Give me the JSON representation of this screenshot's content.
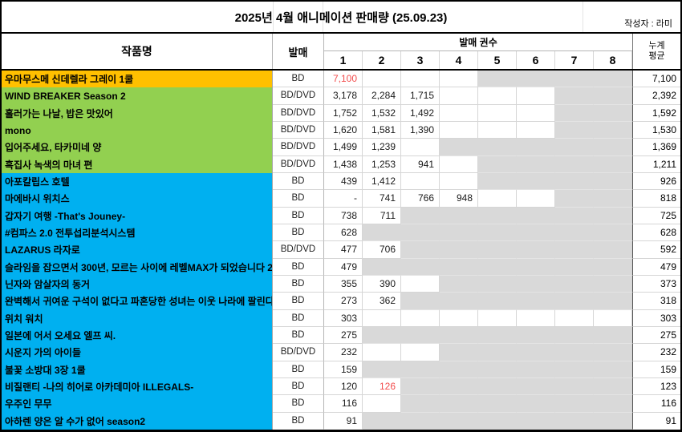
{
  "title": "2025년 4월 애니메이션 판매량 (25.09.23)",
  "author": "작성자 : 라미",
  "header": {
    "title_col": "작품명",
    "release_col": "발매",
    "volumes_group": "발매 권수",
    "volume_cols": [
      "1",
      "2",
      "3",
      "4",
      "5",
      "6",
      "7",
      "8"
    ],
    "avg_line1": "누계",
    "avg_line2": "평균"
  },
  "colors": {
    "orange": "#FFC000",
    "green": "#92D050",
    "blue": "#00B0F0",
    "na_gray": "#D9D9D9",
    "red_text": "#F24C4C"
  },
  "rows": [
    {
      "title": "우마무스메 신데렐라 그레이 1쿨",
      "bg": "orange",
      "release": "BD",
      "vols": [
        {
          "v": "7,100",
          "red": true
        },
        "",
        "",
        "",
        "na",
        "na",
        "na",
        "na"
      ],
      "avg": "7,100"
    },
    {
      "title": "WIND BREAKER Season 2",
      "bg": "green",
      "release": "BD/DVD",
      "vols": [
        "3,178",
        "2,284",
        "1,715",
        "",
        "",
        "",
        "na",
        "na"
      ],
      "avg": "2,392"
    },
    {
      "title": "흘러가는 나날, 밥은 맛있어",
      "bg": "green",
      "release": "BD/DVD",
      "vols": [
        "1,752",
        "1,532",
        "1,492",
        "",
        "",
        "",
        "na",
        "na"
      ],
      "avg": "1,592"
    },
    {
      "title": "mono",
      "bg": "green",
      "release": "BD/DVD",
      "vols": [
        "1,620",
        "1,581",
        "1,390",
        "",
        "",
        "",
        "na",
        "na"
      ],
      "avg": "1,530"
    },
    {
      "title": "입어주세요, 타카미네 양",
      "bg": "green",
      "release": "BD/DVD",
      "vols": [
        "1,499",
        "1,239",
        "",
        "na",
        "na",
        "na",
        "na",
        "na"
      ],
      "avg": "1,369"
    },
    {
      "title": "흑집사 녹색의 마녀 편",
      "bg": "green",
      "release": "BD/DVD",
      "vols": [
        "1,438",
        "1,253",
        "941",
        "",
        "na",
        "na",
        "na",
        "na"
      ],
      "avg": "1,211"
    },
    {
      "title": "아포칼립스 호텔",
      "bg": "blue",
      "release": "BD",
      "vols": [
        "439",
        "1,412",
        "",
        "",
        "na",
        "na",
        "na",
        "na"
      ],
      "avg": "926"
    },
    {
      "title": "마에바시 위치스",
      "bg": "blue",
      "release": "BD",
      "vols": [
        "-",
        "741",
        "766",
        "948",
        "",
        "",
        "na",
        "na"
      ],
      "avg": "818"
    },
    {
      "title": "갑자기 여행 -That's Jouney-",
      "bg": "blue",
      "release": "BD",
      "vols": [
        "738",
        "711",
        "na",
        "na",
        "na",
        "na",
        "na",
        "na"
      ],
      "avg": "725"
    },
    {
      "title": "#컴파스 2.0 전투섭리분석시스템",
      "bg": "blue",
      "release": "BD",
      "vols": [
        "628",
        "na",
        "na",
        "na",
        "na",
        "na",
        "na",
        "na"
      ],
      "avg": "628"
    },
    {
      "title": "LAZARUS 라자로",
      "bg": "blue",
      "release": "BD/DVD",
      "vols": [
        "477",
        "706",
        "na",
        "na",
        "na",
        "na",
        "na",
        "na"
      ],
      "avg": "592"
    },
    {
      "title": "슬라임을 잡으면서 300년, 모르는 사이에 레벨MAX가 되었습니다 2",
      "bg": "blue",
      "release": "BD",
      "vols": [
        "479",
        "na",
        "na",
        "na",
        "na",
        "na",
        "na",
        "na"
      ],
      "avg": "479"
    },
    {
      "title": "닌자와 암살자의 동거",
      "bg": "blue",
      "release": "BD",
      "vols": [
        "355",
        "390",
        "",
        "na",
        "na",
        "na",
        "na",
        "na"
      ],
      "avg": "373"
    },
    {
      "title": "완벽해서 귀여운 구석이 없다고 파혼당한 성녀는 이웃 나라에 팔린다",
      "bg": "blue",
      "release": "BD",
      "vols": [
        "273",
        "362",
        "na",
        "na",
        "na",
        "na",
        "na",
        "na"
      ],
      "avg": "318"
    },
    {
      "title": "위치 워치",
      "bg": "blue",
      "release": "BD",
      "vols": [
        "303",
        "",
        "",
        "",
        "",
        "",
        "",
        ""
      ],
      "avg": "303"
    },
    {
      "title": "일본에 어서 오세요 엘프 씨.",
      "bg": "blue",
      "release": "BD",
      "vols": [
        "275",
        "na",
        "na",
        "na",
        "na",
        "na",
        "na",
        "na"
      ],
      "avg": "275"
    },
    {
      "title": "시운지 가의 아이들",
      "bg": "blue",
      "release": "BD/DVD",
      "vols": [
        "232",
        "",
        "",
        "na",
        "na",
        "na",
        "na",
        "na"
      ],
      "avg": "232"
    },
    {
      "title": "불꽃 소방대 3장 1쿨",
      "bg": "blue",
      "release": "BD",
      "vols": [
        "159",
        "na",
        "na",
        "na",
        "na",
        "na",
        "na",
        "na"
      ],
      "avg": "159"
    },
    {
      "title": "비질랜티 -나의 히어로 아카데미아 ILLEGALS-",
      "bg": "blue",
      "release": "BD",
      "vols": [
        "120",
        {
          "v": "126",
          "red": true
        },
        "na",
        "na",
        "na",
        "na",
        "na",
        "na"
      ],
      "avg": "123"
    },
    {
      "title": "우주인 무무",
      "bg": "blue",
      "release": "BD",
      "vols": [
        "116",
        "",
        "na",
        "na",
        "na",
        "na",
        "na",
        "na"
      ],
      "avg": "116"
    },
    {
      "title": "아하렌 양은 알 수가 없어 season2",
      "bg": "blue",
      "release": "BD",
      "vols": [
        "91",
        "na",
        "na",
        "na",
        "na",
        "na",
        "na",
        "na"
      ],
      "avg": "91"
    }
  ]
}
